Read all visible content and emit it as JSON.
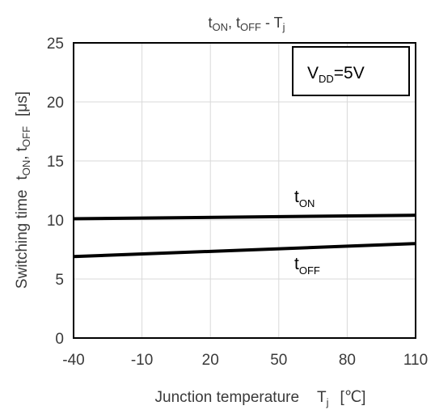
{
  "chart_data": {
    "type": "line",
    "title": {
      "a_main": "t",
      "a_sub": "ON",
      "sep": ", ",
      "b_main": "t",
      "b_sub": "OFF",
      "dash": " - ",
      "c_main": "T",
      "c_sub": "j"
    },
    "xlabel": {
      "text": "Junction temperature",
      "sym": "T",
      "sym_sub": "j",
      "unit": "[℃]"
    },
    "ylabel": {
      "text": "Switching time",
      "s1": "t",
      "s1_sub": "ON",
      "sep": ", ",
      "s2": "t",
      "s2_sub": "OFF",
      "unit": "[μs]"
    },
    "x_ticks": [
      "-40",
      "-10",
      "20",
      "50",
      "80",
      "110"
    ],
    "y_ticks": [
      "0",
      "5",
      "10",
      "15",
      "20",
      "25"
    ],
    "xlim": [
      -40,
      110
    ],
    "ylim": [
      0,
      25
    ],
    "grid": true,
    "annotation": {
      "main": "V",
      "sub": "DD",
      "rest": "=5V"
    },
    "series": [
      {
        "label_main": "t",
        "label_sub": "ON",
        "x": [
          -40,
          110
        ],
        "y": [
          10.1,
          10.4
        ]
      },
      {
        "label_main": "t",
        "label_sub": "OFF",
        "x": [
          -40,
          110
        ],
        "y": [
          6.9,
          8.0
        ]
      }
    ],
    "colors": {
      "line": "#000000",
      "grid": "#d9d9d9",
      "text": "#3a3a3a"
    }
  }
}
